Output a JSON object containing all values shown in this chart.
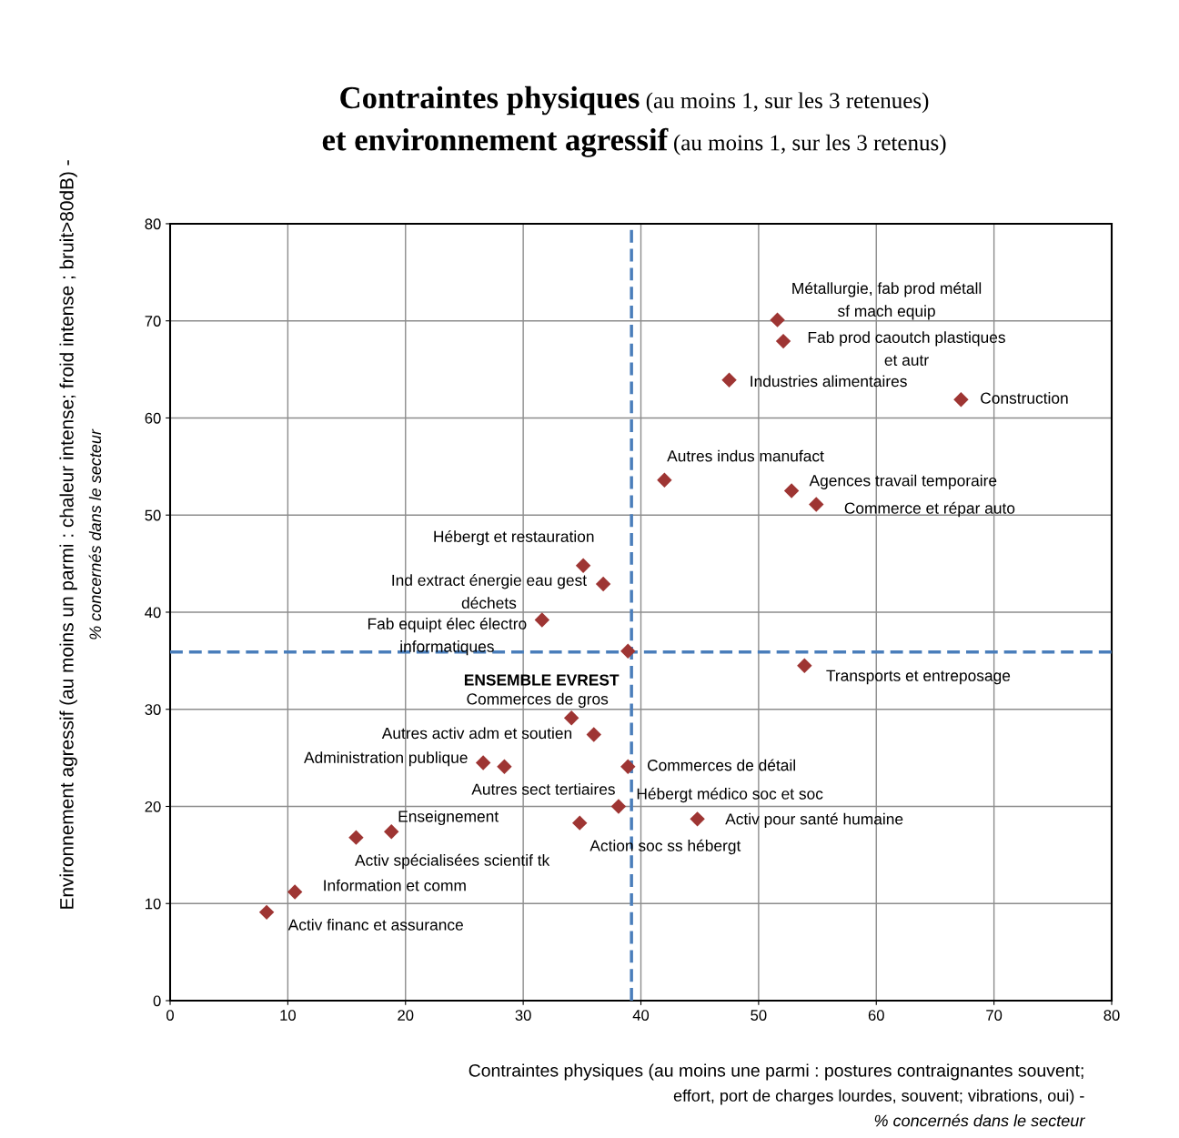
{
  "chart_data": {
    "type": "scatter",
    "title": "Contraintes physiques (au moins 1, sur les 3 retenues)\net environnement agressif (au moins 1, sur les 3 retenus)",
    "xlabel": "Contraintes physiques (au moins une parmi : postures contraignantes souvent;\neffort, port de charges lourdes, souvent; vibrations, oui) -\n% concernés dans le secteur",
    "ylabel": "Environnement agressif (au moins un parmi : chaleur intense; froid intense ; bruit>80dB) -\n% concernés dans le secteur",
    "series": [
      {
        "color": "#9e3533",
        "x": [
          51.6,
          52.1,
          47.5,
          67.2,
          42.0,
          52.8,
          54.9,
          35.1,
          36.8,
          31.6,
          38.9,
          53.9,
          34.1,
          36.0,
          26.6,
          28.4,
          38.9,
          38.1,
          44.8,
          34.8,
          18.8,
          15.8,
          10.6,
          8.2
        ],
        "values": [
          70.1,
          67.9,
          63.9,
          61.9,
          53.6,
          52.5,
          51.1,
          44.8,
          42.9,
          39.2,
          36.0,
          34.5,
          29.1,
          27.4,
          24.5,
          24.1,
          24.1,
          20.0,
          18.7,
          18.3,
          17.4,
          16.8,
          11.2,
          9.1
        ]
      }
    ],
    "marker": "diamond",
    "grid": true,
    "xlim": [
      0,
      80
    ],
    "ylim": [
      0,
      80
    ],
    "xticks": [
      0,
      10,
      20,
      30,
      40,
      50,
      60,
      70,
      80
    ],
    "yticks": [
      0,
      10,
      20,
      30,
      40,
      50,
      60,
      70,
      80
    ],
    "ref_lines": [
      {
        "axis": "x",
        "value": 39.2,
        "color": "#4a7ebb",
        "line_style": "dashed"
      },
      {
        "axis": "y",
        "value": 35.9,
        "color": "#4a7ebb",
        "line_style": "dashed"
      }
    ],
    "annotations": [
      {
        "text": "Métallurgie, fab prod métall\nsf mach equip",
        "x": 51.6,
        "y": 70.1
      },
      {
        "text": "Fab prod caoutch plastiques\net autr",
        "x": 52.1,
        "y": 67.9
      },
      {
        "text": "Industries alimentaires",
        "x": 47.5,
        "y": 63.9
      },
      {
        "text": "Construction",
        "x": 67.2,
        "y": 61.9
      },
      {
        "text": "Autres indus manufact",
        "x": 42.0,
        "y": 53.6
      },
      {
        "text": "Agences travail temporaire",
        "x": 52.8,
        "y": 52.5
      },
      {
        "text": "Commerce et répar auto",
        "x": 54.9,
        "y": 51.1
      },
      {
        "text": "Hébergt et restauration",
        "x": 35.1,
        "y": 44.8
      },
      {
        "text": "Ind extract énergie eau gest\ndéchets",
        "x": 36.8,
        "y": 42.9
      },
      {
        "text": "Fab equipt élec électro\ninformatiques",
        "x": 31.6,
        "y": 39.2
      },
      {
        "text": "ENSEMBLE EVREST",
        "x": 38.9,
        "y": 36.0
      },
      {
        "text": "Transports et entreposage",
        "x": 53.9,
        "y": 34.5
      },
      {
        "text": "Commerces de gros",
        "x": 34.1,
        "y": 29.1
      },
      {
        "text": "Autres activ adm et soutien",
        "x": 36.0,
        "y": 27.4
      },
      {
        "text": "Administration publique",
        "x": 26.6,
        "y": 24.5
      },
      {
        "text": "Autres sect tertiaires",
        "x": 28.4,
        "y": 24.1
      },
      {
        "text": "Commerces de détail",
        "x": 38.9,
        "y": 24.1
      },
      {
        "text": "Hébergt médico soc et soc",
        "x": 38.1,
        "y": 20.0
      },
      {
        "text": "Activ pour santé humaine",
        "x": 44.8,
        "y": 18.7
      },
      {
        "text": "Action soc ss hébergt",
        "x": 34.8,
        "y": 18.3
      },
      {
        "text": "Enseignement",
        "x": 18.8,
        "y": 17.4
      },
      {
        "text": "Activ spécialisées scientif tk",
        "x": 15.8,
        "y": 16.8
      },
      {
        "text": "Information et comm",
        "x": 10.6,
        "y": 11.2
      },
      {
        "text": "Activ financ et assurance",
        "x": 8.2,
        "y": 9.1
      }
    ]
  }
}
